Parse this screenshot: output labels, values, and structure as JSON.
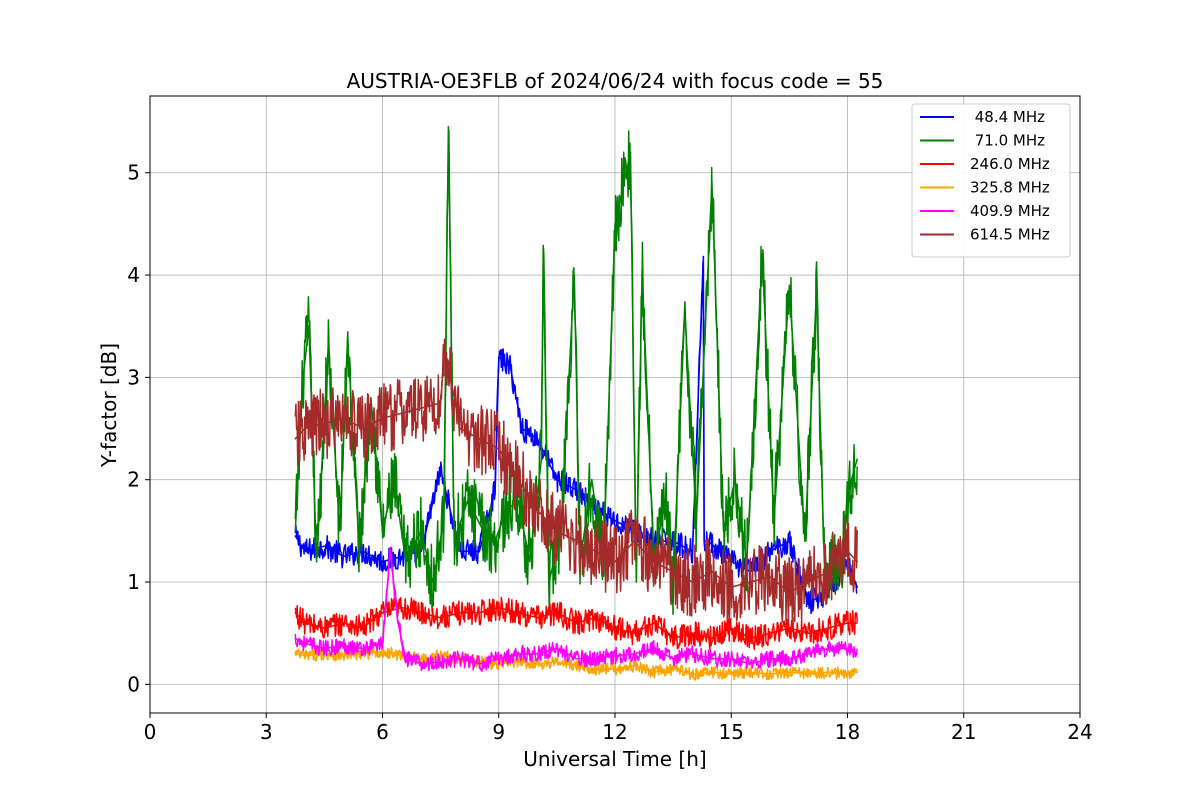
{
  "chart_data": {
    "type": "line",
    "title": "AUSTRIA-OE3FLB of 2024/06/24 with focus code = 55",
    "xlabel": "Universal Time [h]",
    "ylabel": "Y-factor [dB]",
    "xlim": [
      0,
      24
    ],
    "ylim": [
      -0.28,
      5.75
    ],
    "xticks": [
      0,
      3,
      6,
      9,
      12,
      15,
      18,
      21,
      24
    ],
    "xtick_labels": [
      "0",
      "3",
      "6",
      "9",
      "12",
      "15",
      "18",
      "21",
      "24"
    ],
    "yticks": [
      0,
      1,
      2,
      3,
      4,
      5
    ],
    "ytick_labels": [
      "0",
      "1",
      "2",
      "3",
      "4",
      "5"
    ],
    "grid": true,
    "legend_position": "top-right",
    "series": [
      {
        "name": " 48.4 MHz",
        "color": "#0000ff",
        "x": [
          3.75,
          4.0,
          4.5,
          5.0,
          5.5,
          6.0,
          6.5,
          7.0,
          7.5,
          8.0,
          8.5,
          8.9,
          9.0,
          9.3,
          9.6,
          10.0,
          10.5,
          11.0,
          11.5,
          12.0,
          12.5,
          13.0,
          13.5,
          14.0,
          14.28,
          14.3,
          14.4,
          14.7,
          15.0,
          15.5,
          16.0,
          16.5,
          17.0,
          17.5,
          18.0,
          18.25
        ],
        "y": [
          1.45,
          1.3,
          1.35,
          1.25,
          1.3,
          1.2,
          1.25,
          1.3,
          2.1,
          1.3,
          1.3,
          1.9,
          3.2,
          3.1,
          2.5,
          2.4,
          2.0,
          1.9,
          1.7,
          1.6,
          1.5,
          1.4,
          1.4,
          1.3,
          4.18,
          1.4,
          1.4,
          1.3,
          1.2,
          1.1,
          1.3,
          1.4,
          0.8,
          0.9,
          1.2,
          0.95
        ]
      },
      {
        "name": " 71.0 MHz",
        "color": "#008000",
        "x": [
          3.75,
          3.95,
          4.1,
          4.3,
          4.6,
          4.9,
          5.1,
          5.4,
          5.7,
          6.0,
          6.3,
          6.6,
          7.0,
          7.3,
          7.58,
          7.7,
          7.85,
          8.2,
          8.6,
          8.9,
          9.2,
          9.5,
          9.8,
          10.1,
          10.15,
          10.3,
          10.6,
          10.95,
          11.1,
          11.4,
          11.7,
          12.0,
          12.4,
          12.55,
          12.7,
          13.0,
          13.3,
          13.5,
          13.8,
          14.1,
          14.5,
          14.8,
          15.1,
          15.4,
          15.8,
          16.1,
          16.5,
          16.9,
          17.2,
          17.4,
          17.8,
          18.1,
          18.25
        ],
        "y": [
          1.5,
          3.0,
          3.5,
          1.2,
          3.3,
          1.5,
          3.4,
          1.3,
          2.8,
          1.5,
          2.0,
          1.2,
          1.5,
          1.0,
          1.6,
          5.45,
          1.4,
          1.8,
          1.5,
          1.4,
          1.7,
          1.8,
          1.2,
          2.2,
          4.15,
          1.0,
          1.5,
          4.0,
          1.2,
          2.0,
          1.2,
          4.5,
          5.2,
          1.0,
          4.05,
          1.2,
          1.8,
          1.0,
          3.65,
          1.6,
          4.9,
          1.5,
          2.0,
          1.2,
          4.2,
          1.6,
          3.9,
          1.4,
          3.85,
          1.2,
          1.1,
          2.0,
          2.2
        ]
      },
      {
        "name": "246.0 MHz",
        "color": "#ff0000",
        "x": [
          3.75,
          4.0,
          4.5,
          5.0,
          5.5,
          5.8,
          6.0,
          6.5,
          7.0,
          7.5,
          8.0,
          8.5,
          9.0,
          9.5,
          10.0,
          10.5,
          11.0,
          11.5,
          12.0,
          12.5,
          13.0,
          13.5,
          14.0,
          14.5,
          15.0,
          15.5,
          16.0,
          16.5,
          17.0,
          17.5,
          18.0,
          18.25
        ],
        "y": [
          0.7,
          0.6,
          0.55,
          0.6,
          0.55,
          0.65,
          0.7,
          0.75,
          0.7,
          0.65,
          0.7,
          0.7,
          0.75,
          0.7,
          0.65,
          0.7,
          0.6,
          0.65,
          0.55,
          0.5,
          0.6,
          0.45,
          0.5,
          0.45,
          0.55,
          0.45,
          0.5,
          0.55,
          0.5,
          0.55,
          0.6,
          0.6
        ]
      },
      {
        "name": "325.8 MHz",
        "color": "#ffa500",
        "x": [
          3.75,
          4.0,
          4.5,
          5.0,
          5.5,
          6.0,
          6.5,
          7.0,
          7.5,
          8.0,
          8.5,
          9.0,
          9.5,
          10.0,
          10.5,
          11.0,
          11.5,
          12.0,
          12.5,
          13.0,
          13.5,
          14.0,
          14.5,
          15.0,
          15.5,
          16.0,
          16.5,
          17.0,
          17.5,
          18.0,
          18.25
        ],
        "y": [
          0.3,
          0.28,
          0.3,
          0.28,
          0.3,
          0.32,
          0.28,
          0.25,
          0.28,
          0.25,
          0.22,
          0.2,
          0.22,
          0.2,
          0.22,
          0.18,
          0.15,
          0.15,
          0.18,
          0.12,
          0.15,
          0.1,
          0.12,
          0.1,
          0.12,
          0.1,
          0.12,
          0.1,
          0.12,
          0.1,
          0.12
        ]
      },
      {
        "name": "409.9 MHz",
        "color": "#ff00ff",
        "x": [
          3.75,
          4.0,
          4.5,
          5.0,
          5.5,
          6.0,
          6.2,
          6.4,
          6.6,
          7.0,
          7.5,
          8.0,
          8.5,
          9.0,
          9.5,
          10.0,
          10.5,
          11.0,
          11.5,
          12.0,
          12.5,
          13.0,
          13.5,
          14.0,
          14.5,
          15.0,
          15.5,
          16.0,
          16.5,
          17.0,
          17.5,
          18.0,
          18.25
        ],
        "y": [
          0.45,
          0.4,
          0.35,
          0.38,
          0.35,
          0.4,
          1.3,
          0.6,
          0.25,
          0.2,
          0.22,
          0.25,
          0.2,
          0.25,
          0.3,
          0.3,
          0.35,
          0.25,
          0.25,
          0.28,
          0.3,
          0.35,
          0.25,
          0.3,
          0.25,
          0.25,
          0.2,
          0.25,
          0.25,
          0.3,
          0.35,
          0.35,
          0.3
        ]
      },
      {
        "name": "614.5 MHz",
        "color": "#a52a2a",
        "x": [
          3.75,
          4.0,
          4.5,
          5.0,
          5.5,
          6.0,
          6.5,
          7.0,
          7.5,
          7.6,
          8.0,
          8.5,
          9.0,
          9.5,
          10.0,
          10.5,
          11.0,
          11.5,
          12.0,
          12.5,
          13.0,
          13.5,
          14.0,
          14.5,
          15.0,
          15.5,
          16.0,
          16.5,
          17.0,
          17.5,
          18.0,
          18.25
        ],
        "y": [
          2.4,
          2.5,
          2.55,
          2.6,
          2.5,
          2.6,
          2.65,
          2.7,
          2.75,
          3.3,
          2.5,
          2.4,
          2.3,
          2.0,
          1.7,
          1.5,
          1.4,
          1.3,
          1.2,
          1.4,
          1.2,
          1.1,
          1.0,
          1.1,
          0.95,
          1.0,
          1.05,
          0.9,
          1.0,
          1.1,
          1.3,
          1.2
        ]
      }
    ]
  }
}
